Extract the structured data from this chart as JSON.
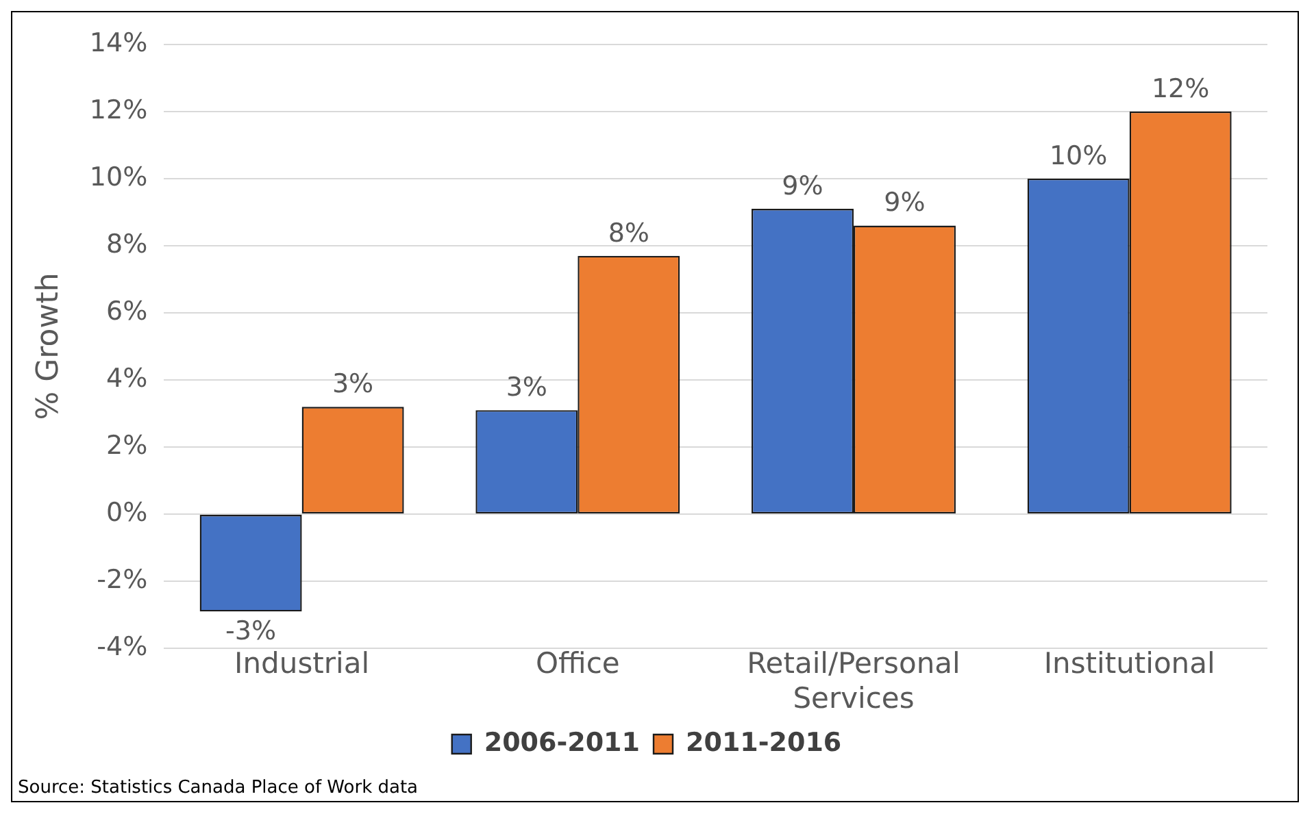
{
  "chart_data": {
    "type": "bar",
    "ylabel": "% Growth",
    "categories": [
      "Industrial",
      "Office",
      "Retail/Personal Services",
      "Institutional"
    ],
    "series": [
      {
        "name": "2006-2011",
        "color": "#4472c4",
        "values": [
          -2.9,
          3.1,
          9.1,
          10.0
        ],
        "value_labels": [
          "-3%",
          "3%",
          "9%",
          "10%"
        ]
      },
      {
        "name": "2011-2016",
        "color": "#ed7d31",
        "values": [
          3.2,
          7.7,
          8.6,
          12.0
        ],
        "value_labels": [
          "3%",
          "8%",
          "9%",
          "12%"
        ]
      }
    ],
    "ylim": [
      -4,
      14
    ],
    "yticks": [
      {
        "value": -4,
        "label": "-4%"
      },
      {
        "value": -2,
        "label": "-2%"
      },
      {
        "value": 0,
        "label": "0%"
      },
      {
        "value": 2,
        "label": "2%"
      },
      {
        "value": 4,
        "label": "4%"
      },
      {
        "value": 6,
        "label": "6%"
      },
      {
        "value": 8,
        "label": "8%"
      },
      {
        "value": 10,
        "label": "10%"
      },
      {
        "value": 12,
        "label": "12%"
      },
      {
        "value": 14,
        "label": "14%"
      }
    ],
    "grid": "y",
    "legend": "bottom",
    "annotations": [
      "Source:  Statistics Canada Place of Work data"
    ]
  }
}
